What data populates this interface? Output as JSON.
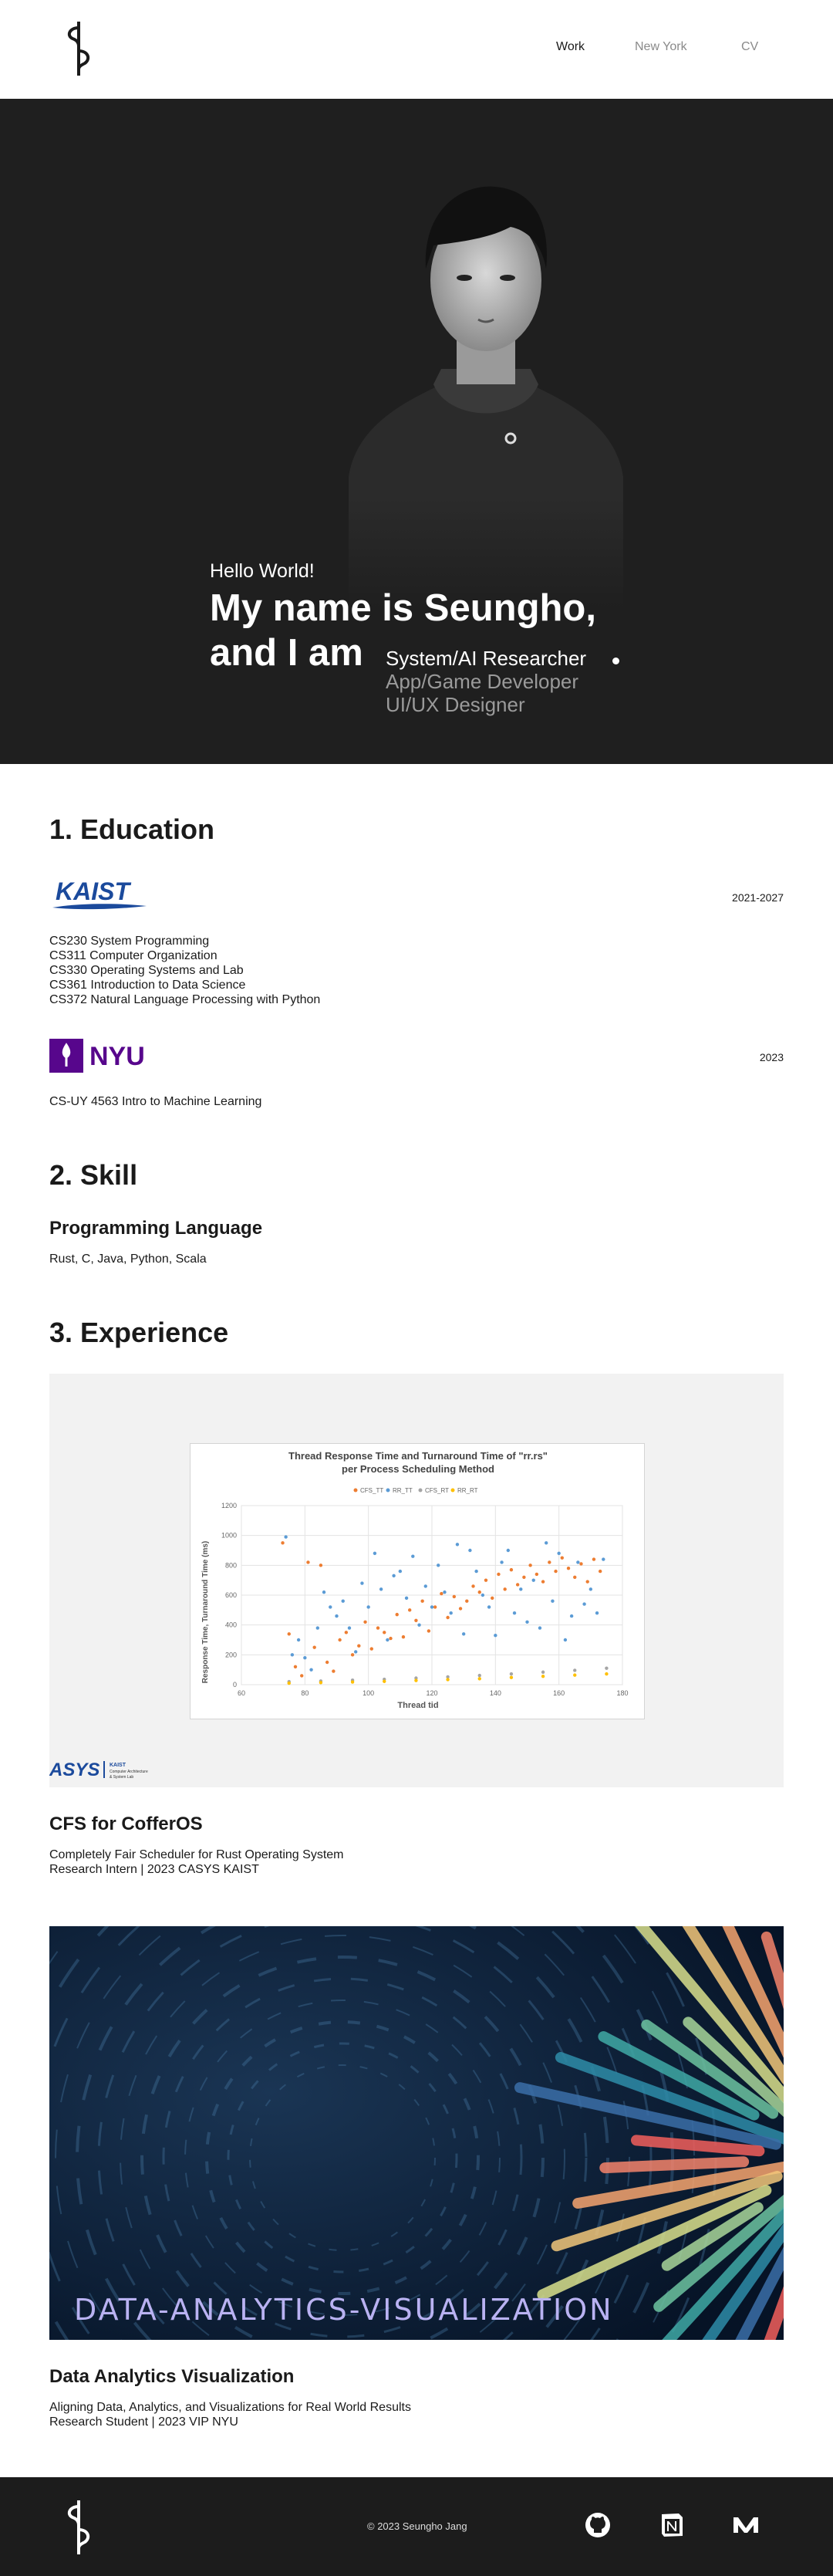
{
  "header": {
    "nav": [
      {
        "label": "Work"
      },
      {
        "label": "New York"
      },
      {
        "label": "CV"
      }
    ]
  },
  "hero": {
    "greeting": "Hello World!",
    "name_line1": "My name is Seungho,",
    "name_line2": "and I am",
    "roles": [
      "System/AI Researcher",
      "App/Game Developer",
      "UI/UX Designer"
    ]
  },
  "education": {
    "title": "1. Education",
    "kaist": {
      "logo_text": "KAIST",
      "years": "2021-2027",
      "courses": [
        "CS230 System Programming",
        "CS311 Computer Organization",
        "CS330 Operating Systems and Lab",
        "CS361 Introduction to Data Science",
        "CS372 Natural Language Processing with Python"
      ]
    },
    "nyu": {
      "logo_text": "NYU",
      "years": "2023",
      "courses": [
        "CS-UY 4563 Intro to Machine Learning"
      ]
    }
  },
  "skill": {
    "title": "2. Skill",
    "subtitle": "Programming Language",
    "languages": "Rust, C, Java, Python, Scala"
  },
  "experience": {
    "title": "3. Experience",
    "projects": [
      {
        "title": "CFS for CofferOS",
        "description": "Completely Fair Scheduler for Rust Operating System",
        "role": "Research Intern | 2023 CASYS KAIST",
        "logo_text": "ASYS",
        "logo_sub": [
          "KAIST",
          "Computer Architecture",
          "& System Lab"
        ]
      },
      {
        "title": "Data Analytics Visualization",
        "description": "Aligning Data, Analytics, and Visualizations for Real World Results",
        "role": "Research Student | 2023 VIP NYU",
        "image_text": "DATA-ANALYTICS-VISUALIZATION"
      }
    ]
  },
  "chart_data": {
    "type": "scatter",
    "title": "Thread Response Time and Turnaround Time of \"rr.rs\"",
    "subtitle": "per Process Scheduling Method",
    "xlabel": "Thread tid",
    "ylabel": "Response Time, Turnaround Time (ms)",
    "xlim": [
      60,
      180
    ],
    "ylim": [
      0,
      1200
    ],
    "xticks": [
      "60",
      "80",
      "100",
      "120",
      "140",
      "160",
      "180"
    ],
    "yticks": [
      "0",
      "200",
      "400",
      "600",
      "800",
      "1000",
      "1200"
    ],
    "legend_position": "top",
    "grid": true,
    "series": [
      {
        "name": "CFS_TT",
        "color": "#ed7d31",
        "points": [
          [
            73,
            950
          ],
          [
            75,
            340
          ],
          [
            77,
            120
          ],
          [
            79,
            60
          ],
          [
            81,
            820
          ],
          [
            83,
            250
          ],
          [
            85,
            800
          ],
          [
            87,
            150
          ],
          [
            89,
            90
          ],
          [
            91,
            300
          ],
          [
            93,
            350
          ],
          [
            95,
            200
          ],
          [
            97,
            260
          ],
          [
            99,
            420
          ],
          [
            101,
            240
          ],
          [
            103,
            380
          ],
          [
            105,
            350
          ],
          [
            107,
            310
          ],
          [
            109,
            470
          ],
          [
            111,
            320
          ],
          [
            113,
            500
          ],
          [
            115,
            430
          ],
          [
            117,
            560
          ],
          [
            119,
            360
          ],
          [
            121,
            520
          ],
          [
            123,
            610
          ],
          [
            125,
            450
          ],
          [
            127,
            590
          ],
          [
            129,
            510
          ],
          [
            131,
            560
          ],
          [
            133,
            660
          ],
          [
            135,
            620
          ],
          [
            137,
            700
          ],
          [
            139,
            580
          ],
          [
            141,
            740
          ],
          [
            143,
            640
          ],
          [
            145,
            770
          ],
          [
            147,
            670
          ],
          [
            149,
            720
          ],
          [
            151,
            800
          ],
          [
            153,
            740
          ],
          [
            155,
            690
          ],
          [
            157,
            820
          ],
          [
            159,
            760
          ],
          [
            161,
            850
          ],
          [
            163,
            780
          ],
          [
            165,
            720
          ],
          [
            167,
            810
          ],
          [
            169,
            690
          ],
          [
            171,
            840
          ],
          [
            173,
            760
          ]
        ]
      },
      {
        "name": "RR_TT",
        "color": "#5b9bd5",
        "points": [
          [
            74,
            990
          ],
          [
            76,
            200
          ],
          [
            78,
            300
          ],
          [
            80,
            180
          ],
          [
            82,
            100
          ],
          [
            84,
            380
          ],
          [
            86,
            620
          ],
          [
            88,
            520
          ],
          [
            90,
            460
          ],
          [
            92,
            560
          ],
          [
            94,
            380
          ],
          [
            96,
            220
          ],
          [
            98,
            680
          ],
          [
            100,
            520
          ],
          [
            102,
            880
          ],
          [
            104,
            640
          ],
          [
            106,
            300
          ],
          [
            108,
            730
          ],
          [
            110,
            760
          ],
          [
            112,
            580
          ],
          [
            114,
            860
          ],
          [
            116,
            400
          ],
          [
            118,
            660
          ],
          [
            120,
            520
          ],
          [
            122,
            800
          ],
          [
            124,
            620
          ],
          [
            126,
            480
          ],
          [
            128,
            940
          ],
          [
            130,
            340
          ],
          [
            132,
            900
          ],
          [
            134,
            760
          ],
          [
            136,
            600
          ],
          [
            138,
            520
          ],
          [
            140,
            330
          ],
          [
            142,
            820
          ],
          [
            144,
            900
          ],
          [
            146,
            480
          ],
          [
            148,
            640
          ],
          [
            150,
            420
          ],
          [
            152,
            700
          ],
          [
            154,
            380
          ],
          [
            156,
            950
          ],
          [
            158,
            560
          ],
          [
            160,
            880
          ],
          [
            162,
            300
          ],
          [
            164,
            460
          ],
          [
            166,
            820
          ],
          [
            168,
            540
          ],
          [
            170,
            640
          ],
          [
            172,
            480
          ],
          [
            174,
            840
          ]
        ]
      },
      {
        "name": "CFS_RT",
        "color": "#a5a5a5",
        "points": [
          [
            75,
            20
          ],
          [
            85,
            24
          ],
          [
            95,
            30
          ],
          [
            105,
            36
          ],
          [
            115,
            44
          ],
          [
            125,
            52
          ],
          [
            135,
            62
          ],
          [
            145,
            72
          ],
          [
            155,
            84
          ],
          [
            165,
            96
          ],
          [
            175,
            110
          ]
        ]
      },
      {
        "name": "RR_RT",
        "color": "#ffc000",
        "points": [
          [
            75,
            10
          ],
          [
            85,
            14
          ],
          [
            95,
            18
          ],
          [
            105,
            22
          ],
          [
            115,
            28
          ],
          [
            125,
            34
          ],
          [
            135,
            40
          ],
          [
            145,
            48
          ],
          [
            155,
            56
          ],
          [
            165,
            64
          ],
          [
            175,
            72
          ]
        ]
      }
    ]
  },
  "footer": {
    "copyright": "© 2023 Seungho Jang"
  }
}
